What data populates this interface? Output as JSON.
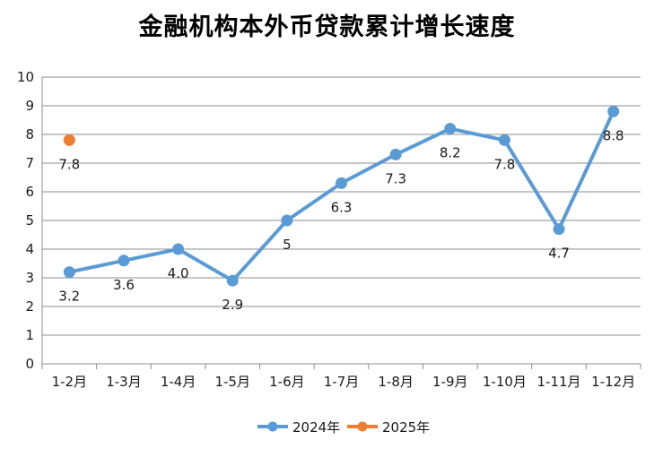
{
  "chart_data": {
    "type": "line",
    "title": "金融机构本外币贷款累计增长速度",
    "categories": [
      "1-2月",
      "1-3月",
      "1-4月",
      "1-5月",
      "1-6月",
      "1-7月",
      "1-8月",
      "1-9月",
      "1-10月",
      "1-11月",
      "1-12月"
    ],
    "series": [
      {
        "name": "2024年",
        "color": "#5b9bd5",
        "values": [
          3.2,
          3.6,
          4.0,
          2.9,
          5,
          6.3,
          7.3,
          8.2,
          7.8,
          4.7,
          8.8
        ],
        "labels": [
          "3.2",
          "3.6",
          "4.0",
          "2.9",
          "5",
          "6.3",
          "7.3",
          "8.2",
          "7.8",
          "4.7",
          "8.8"
        ]
      },
      {
        "name": "2025年",
        "color": "#ed7d31",
        "values": [
          7.8,
          null,
          null,
          null,
          null,
          null,
          null,
          null,
          null,
          null,
          null
        ],
        "labels": [
          "7.8",
          "",
          "",
          "",
          "",
          "",
          "",
          "",
          "",
          "",
          ""
        ]
      }
    ],
    "ylim": [
      0,
      10
    ],
    "yticks": [
      "0",
      "1",
      "2",
      "3",
      "4",
      "5",
      "6",
      "7",
      "8",
      "9",
      "10"
    ],
    "grid": true,
    "legend": "bottom"
  }
}
